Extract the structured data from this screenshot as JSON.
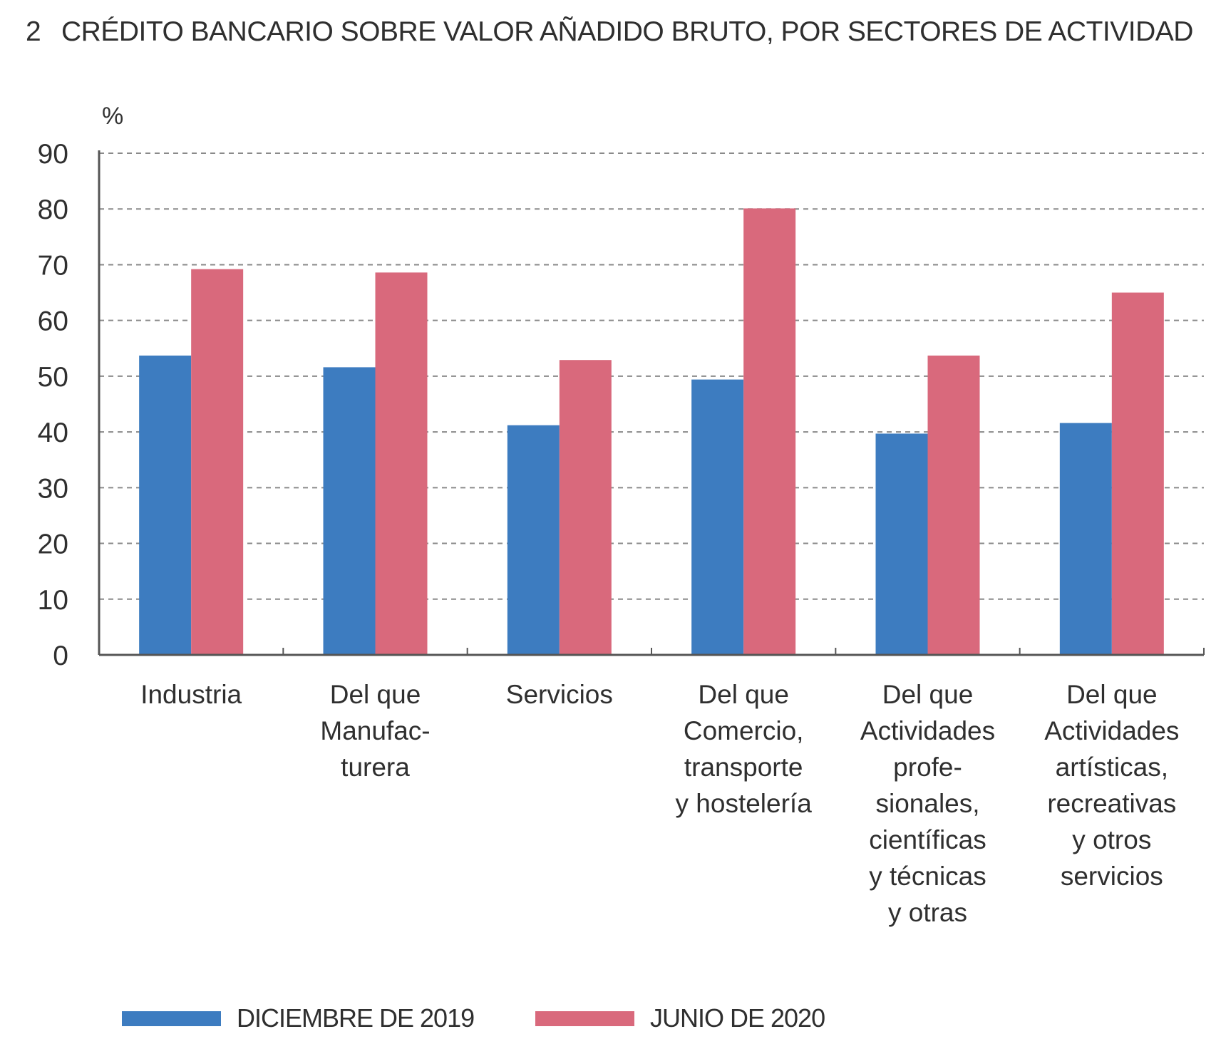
{
  "chart_data": {
    "type": "bar",
    "title_number": "2",
    "title": "CRÉDITO BANCARIO SOBRE VALOR AÑADIDO BRUTO, POR SECTORES DE ACTIVIDAD",
    "ylabel": "%",
    "xlabel": "",
    "ylim": [
      0,
      90
    ],
    "yticks": [
      "0",
      "10",
      "20",
      "30",
      "40",
      "50",
      "60",
      "70",
      "80",
      "90"
    ],
    "grid": true,
    "legend_position": "bottom",
    "categories": [
      [
        "Industria"
      ],
      [
        "Del que",
        "Manufac-",
        "turera"
      ],
      [
        "Servicios"
      ],
      [
        "Del que",
        "Comercio,",
        "transporte",
        "y hostelería"
      ],
      [
        "Del que",
        "Actividades",
        "profe-",
        "sionales,",
        "científicas",
        "y técnicas",
        "y otras"
      ],
      [
        "Del que",
        "Actividades",
        "artísticas,",
        "recreativas",
        "y otros",
        "servicios"
      ]
    ],
    "series": [
      {
        "name": "DICIEMBRE DE 2019",
        "color": "#3d7cc0",
        "values": [
          53.7,
          51.6,
          41.2,
          49.4,
          39.7,
          41.6
        ]
      },
      {
        "name": "JUNIO DE 2020",
        "color": "#d9697c",
        "values": [
          69.2,
          68.6,
          52.9,
          80.1,
          53.7,
          65.0
        ]
      }
    ]
  }
}
